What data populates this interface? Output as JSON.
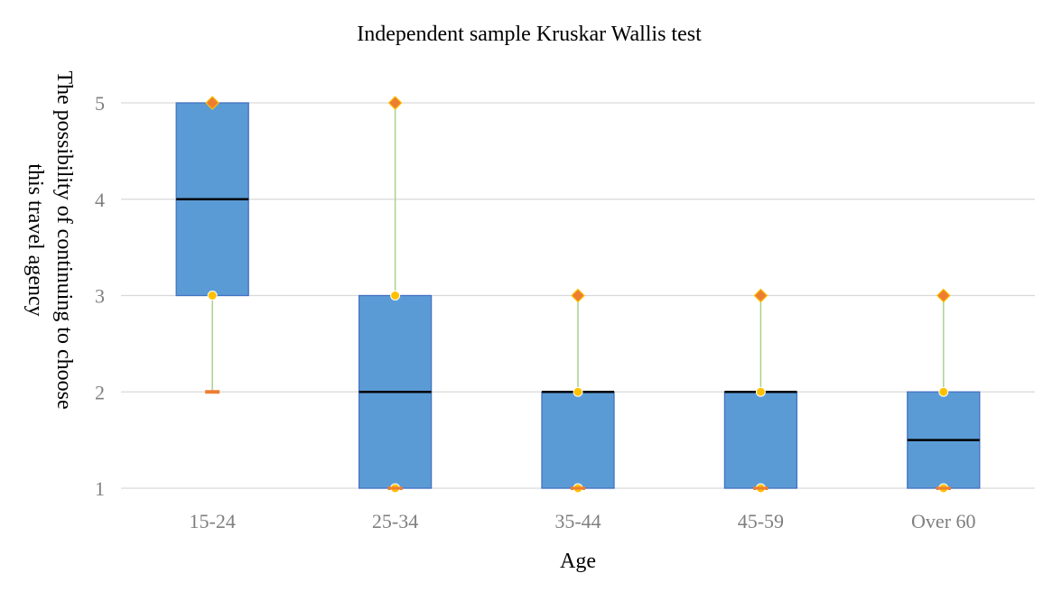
{
  "chart_data": {
    "type": "box",
    "title": "Independent sample Kruskar Wallis test",
    "xlabel": "Age",
    "ylabel_lines": [
      "The possibility of continuing to choose",
      "this travel agency"
    ],
    "categories": [
      "15-24",
      "25-34",
      "35-44",
      "45-59",
      "Over 60"
    ],
    "yticks": [
      1,
      2,
      3,
      4,
      5
    ],
    "ylim": [
      1,
      5
    ],
    "grid": true,
    "legend": "none",
    "colors": {
      "box_fill": "#5b9bd5",
      "box_stroke": "#4472c4",
      "median": "#000000",
      "whisker": "#a9d18e",
      "max_marker": "#ed7d31",
      "quartile_marker": "#ffc000",
      "min_marker": "#ed7d31",
      "grid": "#d9d9d9"
    },
    "boxes": [
      {
        "min": 2,
        "q1": 3,
        "median": 4,
        "q3": 5,
        "max": 5
      },
      {
        "min": 1,
        "q1": 1,
        "median": 2,
        "q3": 3,
        "max": 5
      },
      {
        "min": 1,
        "q1": 1,
        "median": 2,
        "q3": 2,
        "max": 3
      },
      {
        "min": 1,
        "q1": 1,
        "median": 2,
        "q3": 2,
        "max": 3
      },
      {
        "min": 1,
        "q1": 1,
        "median": 1.5,
        "q3": 2,
        "max": 3
      }
    ]
  }
}
